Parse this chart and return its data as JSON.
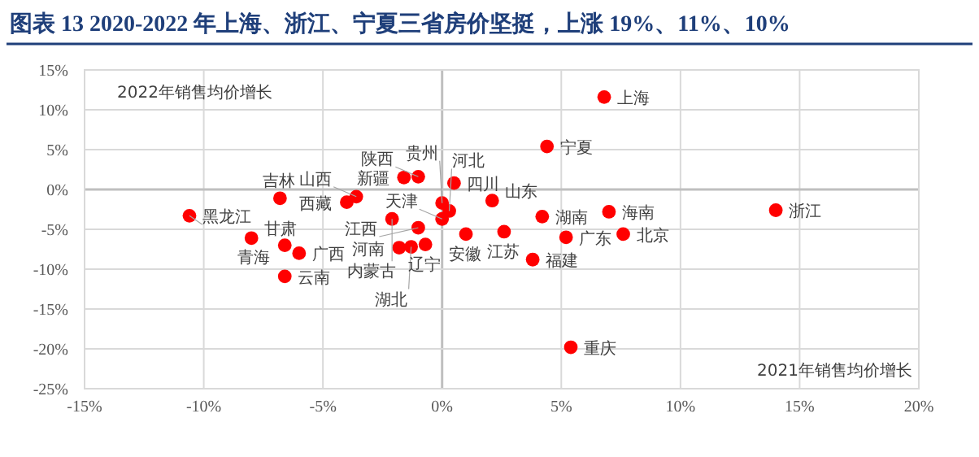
{
  "chart_data": {
    "type": "scatter",
    "title": "图表 13   2020-2022 年上海、浙江、宁夏三省房价坚挺，上涨 19%、11%、10%",
    "xlabel": "2021年销售均价增长",
    "ylabel": "2022年销售均价增长",
    "xlim": [
      -15,
      20
    ],
    "xticks": [
      {
        "value": -15,
        "label": "-15%"
      },
      {
        "value": -10,
        "label": "-10%"
      },
      {
        "value": -5,
        "label": "-5%"
      },
      {
        "value": 0,
        "label": "0%"
      },
      {
        "value": 5,
        "label": "5%"
      },
      {
        "value": 10,
        "label": "10%"
      },
      {
        "value": 15,
        "label": "15%"
      },
      {
        "value": 20,
        "label": "20%"
      }
    ],
    "ylim": [
      -25,
      15
    ],
    "yticks": [
      {
        "value": -25,
        "label": "-25%"
      },
      {
        "value": -20,
        "label": "-20%"
      },
      {
        "value": -15,
        "label": "-15%"
      },
      {
        "value": -10,
        "label": "-10%"
      },
      {
        "value": -5,
        "label": "-5%"
      },
      {
        "value": 0,
        "label": "0%"
      },
      {
        "value": 5,
        "label": "5%"
      },
      {
        "value": 10,
        "label": "10%"
      },
      {
        "value": 15,
        "label": "15%"
      }
    ],
    "grid": true,
    "marker": "circle",
    "series": [
      {
        "color": "#ff0000",
        "x": [
          6.8,
          4.4,
          14.0,
          7.0,
          4.2,
          7.6,
          5.2,
          3.8,
          5.4,
          2.1,
          2.6,
          1.0,
          0.0,
          0.3,
          0.0,
          -1.0,
          -2.1,
          -1.8,
          -1.3,
          -0.7,
          -1.6,
          -1.0,
          0.5,
          -4.0,
          -3.6,
          -10.6,
          -6.8,
          -8.0,
          -6.6,
          -6.0,
          -6.6
        ],
        "values": [
          11.6,
          5.4,
          -2.6,
          -2.8,
          -3.4,
          -5.6,
          -6.0,
          -8.8,
          -19.8,
          -1.4,
          -5.3,
          -5.6,
          -3.7,
          -2.7,
          -1.7,
          -4.8,
          -3.7,
          -7.3,
          -7.2,
          -6.9,
          1.5,
          1.6,
          0.8,
          -1.6,
          -0.9,
          -3.3,
          -1.1,
          -6.1,
          -7.0,
          -8.0,
          -10.9
        ]
      }
    ],
    "annotations": [
      {
        "text": "上海",
        "x": 6.8,
        "y": 11.6
      },
      {
        "text": "宁夏",
        "x": 4.4,
        "y": 5.4
      },
      {
        "text": "浙江",
        "x": 14.0,
        "y": -2.6
      },
      {
        "text": "海南",
        "x": 7.0,
        "y": -2.8
      },
      {
        "text": "湖南",
        "x": 4.2,
        "y": -3.4
      },
      {
        "text": "北京",
        "x": 7.6,
        "y": -5.6
      },
      {
        "text": "广东",
        "x": 5.2,
        "y": -6.0
      },
      {
        "text": "福建",
        "x": 3.8,
        "y": -8.8
      },
      {
        "text": "重庆",
        "x": 5.4,
        "y": -19.8
      },
      {
        "text": "山东",
        "x": 2.1,
        "y": -1.4
      },
      {
        "text": "江苏",
        "x": 2.6,
        "y": -5.3
      },
      {
        "text": "安徽",
        "x": 1.0,
        "y": -5.6
      },
      {
        "text": "天津",
        "x": 0.0,
        "y": -3.7
      },
      {
        "text": "河北",
        "x": 0.3,
        "y": -2.7
      },
      {
        "text": "贵州",
        "x": 0.0,
        "y": -1.7
      },
      {
        "text": "江西",
        "x": -1.0,
        "y": -4.8
      },
      {
        "text": "内蒙古",
        "x": -2.1,
        "y": -3.7
      },
      {
        "text": "河南",
        "x": -1.8,
        "y": -7.3
      },
      {
        "text": "湖北",
        "x": -1.3,
        "y": -7.2
      },
      {
        "text": "辽宁",
        "x": -0.7,
        "y": -6.9
      },
      {
        "text": "新疆",
        "x": -1.6,
        "y": 1.5
      },
      {
        "text": "陕西",
        "x": -1.0,
        "y": 1.6
      },
      {
        "text": "四川",
        "x": 0.5,
        "y": 0.8
      },
      {
        "text": "西藏",
        "x": -4.0,
        "y": -1.6
      },
      {
        "text": "山西",
        "x": -3.6,
        "y": -0.9
      },
      {
        "text": "黑龙江",
        "x": -10.6,
        "y": -3.3
      },
      {
        "text": "吉林",
        "x": -6.8,
        "y": -1.1
      },
      {
        "text": "甘肃",
        "x": -8.0,
        "y": -6.1
      },
      {
        "text": "青海",
        "x": -6.6,
        "y": -7.0
      },
      {
        "text": "广西",
        "x": -6.0,
        "y": -8.0
      },
      {
        "text": "云南",
        "x": -6.6,
        "y": -10.9
      }
    ]
  }
}
